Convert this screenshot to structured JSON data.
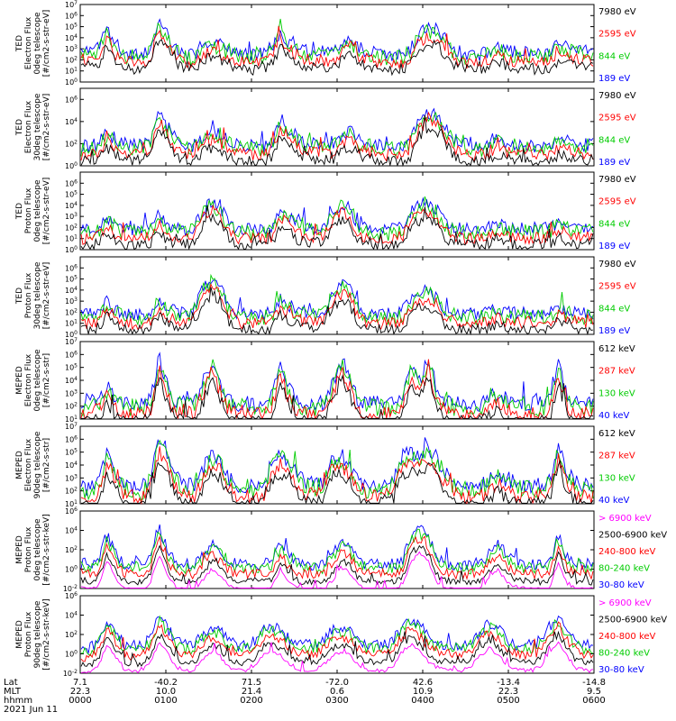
{
  "chart_data": [
    {
      "type": "line",
      "ylabel": [
        "TED",
        "Electron Flux",
        "0deg telescope",
        "[#/cm2-s-str-eV]"
      ],
      "ylog": true,
      "ylim_exp": [
        0,
        7
      ],
      "tick_labels": [
        "10^0",
        "10^1",
        "10^2",
        "10^3",
        "10^4",
        "10^5",
        "10^6",
        "10^7"
      ],
      "series": [
        {
          "name": "7980 eV",
          "color": "#000000"
        },
        {
          "name": "2595 eV",
          "color": "#ff0000"
        },
        {
          "name": "844 eV",
          "color": "#00cc00"
        },
        {
          "name": "189 eV",
          "color": "#0000ff"
        }
      ],
      "profile": [
        2.8,
        2.8,
        3.0,
        4.8,
        3.2,
        2.6,
        2.6,
        2.6,
        3.0,
        5.6,
        4.2,
        3.0,
        2.6,
        2.4,
        3.4,
        3.6,
        3.4,
        3.0,
        2.6,
        2.5,
        2.5,
        2.5,
        3.2,
        4.6,
        3.5,
        3.0,
        2.8,
        2.7,
        2.7,
        2.7,
        3.3,
        4.0,
        3.1,
        2.8,
        2.6,
        2.5,
        2.5,
        2.6,
        3.0,
        4.5,
        4.8,
        4.9,
        3.8,
        2.8,
        2.6,
        2.5,
        2.5,
        2.8,
        3.2,
        2.9,
        2.7,
        2.7,
        2.6,
        2.5,
        2.6,
        3.4,
        3.1,
        2.9,
        2.8,
        2.7
      ]
    },
    {
      "type": "line",
      "ylabel": [
        "TED",
        "Electron Flux",
        "30deg telescope",
        "[#/cm2-s-str-eV]"
      ],
      "ylog": true,
      "ylim_exp": [
        0,
        7
      ],
      "tick_labels": [
        "10^0",
        "10^2",
        "10^4",
        "10^6"
      ],
      "series": [
        {
          "name": "7980 eV",
          "color": "#000000"
        },
        {
          "name": "2595 eV",
          "color": "#ff0000"
        },
        {
          "name": "844 eV",
          "color": "#00cc00"
        },
        {
          "name": "189 eV",
          "color": "#0000ff"
        }
      ],
      "profile": [
        1.8,
        1.8,
        2.0,
        3.0,
        2.4,
        2.0,
        1.9,
        1.9,
        2.3,
        4.8,
        3.5,
        2.3,
        2.0,
        1.8,
        2.6,
        3.0,
        2.8,
        2.3,
        1.9,
        1.8,
        1.8,
        1.8,
        2.2,
        4.2,
        3.3,
        2.5,
        2.2,
        2.0,
        2.0,
        2.0,
        2.7,
        3.2,
        2.4,
        2.1,
        1.9,
        1.8,
        1.8,
        1.9,
        2.3,
        4.2,
        4.8,
        4.6,
        3.4,
        2.4,
        2.0,
        1.8,
        1.8,
        2.0,
        2.4,
        2.1,
        1.9,
        1.9,
        1.8,
        1.8,
        1.9,
        2.4,
        2.2,
        2.0,
        1.9,
        1.9
      ]
    },
    {
      "type": "line",
      "ylabel": [
        "TED",
        "Proton Flux",
        "0deg telescope",
        "[#/cm2-s-str-eV]"
      ],
      "ylog": true,
      "ylim_exp": [
        0,
        7
      ],
      "tick_labels": [
        "10^0",
        "10^1",
        "10^2",
        "10^3",
        "10^4",
        "10^5",
        "10^6"
      ],
      "series": [
        {
          "name": "7980 eV",
          "color": "#000000"
        },
        {
          "name": "2595 eV",
          "color": "#ff0000"
        },
        {
          "name": "844 eV",
          "color": "#00cc00"
        },
        {
          "name": "189 eV",
          "color": "#0000ff"
        }
      ],
      "profile": [
        1.8,
        1.8,
        2.0,
        3.0,
        2.2,
        1.8,
        1.8,
        1.8,
        2.0,
        3.2,
        2.2,
        1.9,
        1.9,
        2.0,
        3.6,
        4.3,
        3.8,
        2.4,
        1.9,
        1.8,
        1.8,
        1.8,
        2.0,
        3.6,
        3.0,
        2.2,
        2.0,
        2.0,
        2.2,
        3.4,
        4.2,
        3.6,
        2.2,
        1.9,
        1.8,
        1.8,
        1.8,
        2.0,
        3.5,
        4.0,
        4.2,
        3.6,
        2.4,
        2.0,
        1.8,
        1.8,
        1.8,
        2.0,
        2.3,
        2.0,
        1.9,
        1.9,
        1.9,
        1.9,
        2.0,
        2.5,
        2.2,
        2.0,
        1.9,
        1.9
      ]
    },
    {
      "type": "line",
      "ylabel": [
        "TED",
        "Proton Flux",
        "30deg telescope",
        "[#/cm2-s-str-eV]"
      ],
      "ylog": true,
      "ylim_exp": [
        0,
        7
      ],
      "tick_labels": [
        "10^0",
        "10^1",
        "10^2",
        "10^3",
        "10^4",
        "10^5",
        "10^6"
      ],
      "series": [
        {
          "name": "7980 eV",
          "color": "#000000"
        },
        {
          "name": "2595 eV",
          "color": "#ff0000"
        },
        {
          "name": "844 eV",
          "color": "#00cc00"
        },
        {
          "name": "189 eV",
          "color": "#0000ff"
        }
      ],
      "profile": [
        1.8,
        1.8,
        2.0,
        3.0,
        2.2,
        1.8,
        1.8,
        1.8,
        2.0,
        3.2,
        2.4,
        2.0,
        2.0,
        2.3,
        4.2,
        5.0,
        4.5,
        2.6,
        1.9,
        1.8,
        1.8,
        1.8,
        2.0,
        3.2,
        2.6,
        2.2,
        2.0,
        2.0,
        2.2,
        3.8,
        4.5,
        4.0,
        2.4,
        1.9,
        1.8,
        1.8,
        1.8,
        2.0,
        3.2,
        3.8,
        4.0,
        3.4,
        2.2,
        2.0,
        1.8,
        1.8,
        1.8,
        2.0,
        2.3,
        2.0,
        1.9,
        1.9,
        1.9,
        1.9,
        2.0,
        2.6,
        2.2,
        2.0,
        1.9,
        1.9
      ]
    },
    {
      "type": "line",
      "ylabel": [
        "MEPED",
        "Electron Flux",
        "0deg telescope",
        "[#/cm2-s-str]"
      ],
      "ylog": true,
      "ylim_exp": [
        1,
        7
      ],
      "tick_labels": [
        "10^1",
        "10^2",
        "10^3",
        "10^4",
        "10^5",
        "10^6",
        "10^7"
      ],
      "series": [
        {
          "name": "612 keV",
          "color": "#000000"
        },
        {
          "name": "287 keV",
          "color": "#ff0000"
        },
        {
          "name": "130 keV",
          "color": "#00cc00"
        },
        {
          "name": "40 keV",
          "color": "#0000ff"
        }
      ],
      "profile": [
        2.2,
        2.2,
        2.6,
        3.6,
        2.6,
        2.2,
        2.2,
        2.2,
        2.6,
        5.8,
        3.4,
        2.4,
        2.3,
        2.2,
        3.5,
        5.5,
        4.0,
        2.4,
        2.2,
        2.2,
        2.2,
        2.2,
        2.8,
        5.3,
        3.2,
        2.4,
        2.3,
        2.2,
        2.3,
        3.8,
        5.6,
        4.2,
        2.4,
        2.2,
        2.2,
        2.2,
        2.2,
        2.6,
        5.2,
        4.0,
        5.5,
        3.4,
        2.4,
        2.2,
        2.2,
        2.2,
        2.2,
        2.6,
        3.0,
        2.5,
        2.3,
        2.2,
        2.2,
        2.2,
        2.4,
        5.4,
        2.6,
        2.3,
        2.2,
        2.2
      ]
    },
    {
      "type": "line",
      "ylabel": [
        "MEPED",
        "Electron Flux",
        "90deg telescope",
        "[#/cm2-s-str]"
      ],
      "ylog": true,
      "ylim_exp": [
        1,
        7
      ],
      "tick_labels": [
        "10^1",
        "10^2",
        "10^3",
        "10^4",
        "10^5",
        "10^6",
        "10^7"
      ],
      "series": [
        {
          "name": "612 keV",
          "color": "#000000"
        },
        {
          "name": "287 keV",
          "color": "#ff0000"
        },
        {
          "name": "130 keV",
          "color": "#00cc00"
        },
        {
          "name": "40 keV",
          "color": "#0000ff"
        }
      ],
      "profile": [
        2.2,
        2.2,
        2.6,
        4.8,
        3.6,
        2.4,
        2.2,
        2.2,
        3.2,
        5.8,
        4.8,
        3.0,
        2.4,
        2.4,
        3.6,
        4.8,
        4.4,
        3.0,
        2.4,
        2.3,
        2.3,
        2.4,
        4.2,
        4.8,
        4.4,
        3.2,
        2.6,
        2.5,
        2.8,
        4.6,
        4.8,
        4.0,
        2.6,
        2.4,
        2.3,
        2.4,
        2.8,
        4.6,
        5.0,
        4.6,
        5.4,
        4.6,
        3.4,
        2.6,
        2.4,
        2.3,
        2.4,
        2.8,
        3.4,
        2.8,
        2.5,
        2.4,
        2.4,
        2.4,
        2.8,
        5.4,
        3.4,
        2.6,
        2.4,
        2.3
      ]
    },
    {
      "type": "line",
      "ylabel": [
        "MEPED",
        "Proton Flux",
        "0deg telescope",
        "[#/cm2-s-str-keV]"
      ],
      "ylog": true,
      "ylim_exp": [
        -2,
        6
      ],
      "tick_labels": [
        "10^-2",
        "10^0",
        "10^2",
        "10^4",
        "10^6"
      ],
      "series": [
        {
          "name": "> 6900 keV",
          "color": "#ff00ff"
        },
        {
          "name": "2500-6900 keV",
          "color": "#000000"
        },
        {
          "name": "240-800 keV",
          "color": "#ff0000"
        },
        {
          "name": "80-240 keV",
          "color": "#00cc00"
        },
        {
          "name": "30-80 keV",
          "color": "#0000ff"
        }
      ],
      "profile": [
        0.6,
        0.6,
        0.8,
        3.5,
        1.6,
        0.6,
        0.5,
        0.5,
        1.2,
        4.2,
        1.8,
        0.6,
        0.5,
        0.5,
        1.4,
        2.6,
        2.0,
        0.8,
        0.6,
        0.5,
        0.5,
        0.5,
        0.8,
        2.6,
        1.2,
        0.6,
        0.5,
        0.5,
        0.5,
        1.5,
        2.8,
        2.2,
        0.8,
        0.6,
        0.5,
        0.5,
        0.5,
        0.8,
        3.4,
        4.2,
        3.4,
        1.2,
        0.6,
        0.5,
        0.5,
        0.5,
        0.6,
        1.6,
        2.6,
        1.4,
        0.8,
        0.6,
        0.5,
        0.5,
        0.6,
        3.4,
        1.2,
        0.6,
        0.5,
        0.5
      ]
    },
    {
      "type": "line",
      "ylabel": [
        "MEPED",
        "Proton Flux",
        "90deg telescope",
        "[#/cm2-s-str-keV]"
      ],
      "ylog": true,
      "ylim_exp": [
        -2,
        6
      ],
      "tick_labels": [
        "10^-2",
        "10^0",
        "10^2",
        "10^4",
        "10^6"
      ],
      "series": [
        {
          "name": "> 6900 keV",
          "color": "#ff00ff"
        },
        {
          "name": "2500-6900 keV",
          "color": "#000000"
        },
        {
          "name": "240-800 keV",
          "color": "#ff0000"
        },
        {
          "name": "80-240 keV",
          "color": "#00cc00"
        },
        {
          "name": "30-80 keV",
          "color": "#0000ff"
        }
      ],
      "profile": [
        0.6,
        0.6,
        1.4,
        3.6,
        2.2,
        1.0,
        0.8,
        0.8,
        1.8,
        3.8,
        2.6,
        1.2,
        0.9,
        0.9,
        2.0,
        2.8,
        2.4,
        1.2,
        0.9,
        0.9,
        1.4,
        2.6,
        2.8,
        2.4,
        1.6,
        1.0,
        0.9,
        0.9,
        1.6,
        2.4,
        2.8,
        2.4,
        1.4,
        1.0,
        0.9,
        0.9,
        1.4,
        2.8,
        3.6,
        2.8,
        1.8,
        1.2,
        1.0,
        0.9,
        0.9,
        1.4,
        2.4,
        3.2,
        2.6,
        1.6,
        1.0,
        0.9,
        0.9,
        1.4,
        2.8,
        3.8,
        2.4,
        1.2,
        0.9,
        0.8
      ]
    }
  ],
  "x_axis": {
    "labels": [
      "Lat",
      "MLT",
      "hhmm"
    ],
    "ticks": [
      {
        "lat": "7.1",
        "mlt": "22.3",
        "hhmm": "0000"
      },
      {
        "lat": "-40.2",
        "mlt": "10.0",
        "hhmm": "0100"
      },
      {
        "lat": "71.5",
        "mlt": "21.4",
        "hhmm": "0200"
      },
      {
        "lat": "-72.0",
        "mlt": "0.6",
        "hhmm": "0300"
      },
      {
        "lat": "42.6",
        "mlt": "10.9",
        "hhmm": "0400"
      },
      {
        "lat": "-13.4",
        "mlt": "22.3",
        "hhmm": "0500"
      },
      {
        "lat": "-14.8",
        "mlt": "9.5",
        "hhmm": "0600"
      }
    ],
    "date": "2021 Jun 11"
  }
}
